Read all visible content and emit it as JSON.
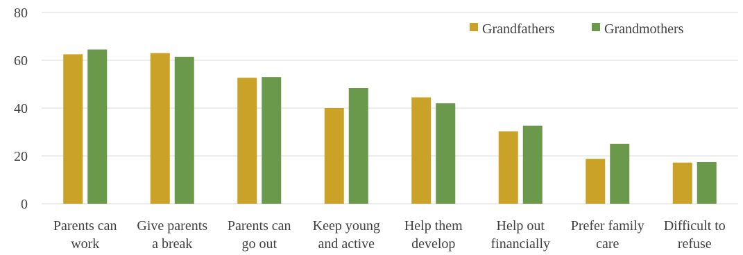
{
  "chart_data": {
    "type": "bar",
    "title": "",
    "xlabel": "",
    "ylabel": "",
    "ylim": [
      0,
      80
    ],
    "yticks": [
      0,
      20,
      40,
      60,
      80
    ],
    "grid": true,
    "legend_position": "top-right",
    "categories": [
      [
        "Parents can",
        "work"
      ],
      [
        "Give parents",
        "a break"
      ],
      [
        "Parents can",
        "go out"
      ],
      [
        "Keep young",
        "and active"
      ],
      [
        "Help them",
        "develop"
      ],
      [
        "Help out",
        "financially"
      ],
      [
        "Prefer family",
        "care"
      ],
      [
        "Difficult to",
        "refuse"
      ]
    ],
    "series": [
      {
        "name": "Grandfathers",
        "color": "#C9A227",
        "values": [
          62.5,
          63,
          52.7,
          40,
          44.5,
          30.3,
          18.8,
          17.2
        ]
      },
      {
        "name": "Grandmothers",
        "color": "#6A994B",
        "values": [
          64.5,
          61.5,
          53,
          48.4,
          42,
          32.6,
          25,
          17.4
        ]
      }
    ]
  }
}
